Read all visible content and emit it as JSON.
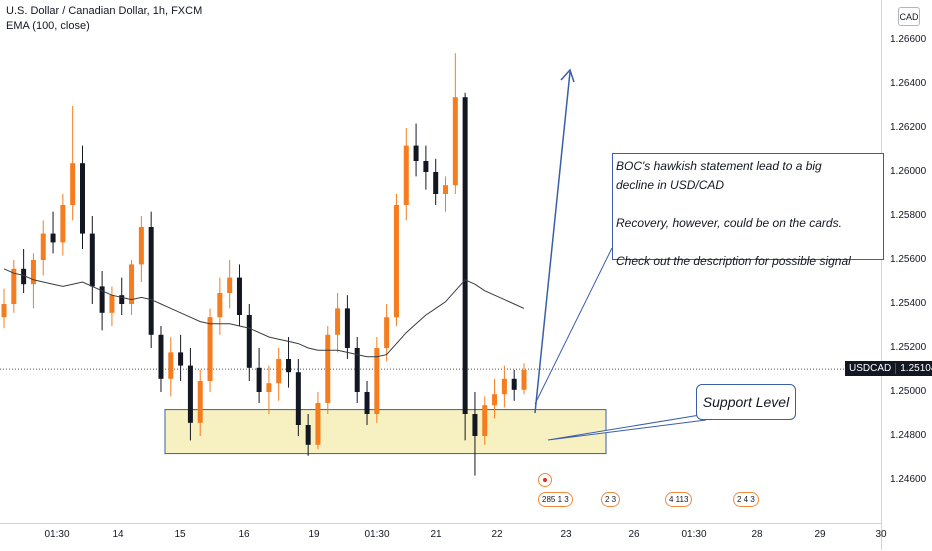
{
  "header": {
    "symbol_line": "U.S. Dollar / Canadian Dollar, 1h, FXCM",
    "indicator_line": "EMA (100, close)"
  },
  "currency_button": "CAD",
  "price_tag": {
    "symbol": "USDCAD",
    "value": "1.25104"
  },
  "annotations": {
    "note_lines": [
      "BOC's hawkish statement lead to a big",
      "decline in USD/CAD",
      "",
      "Recovery, however, could be on the cards.",
      "",
      "Check out the description for possible signal"
    ],
    "support_label": "Support Level"
  },
  "events": [
    {
      "label": "285 1 3"
    },
    {
      "label": "2  3"
    },
    {
      "label": "4 113"
    },
    {
      "label": "2  4 3"
    }
  ],
  "colors": {
    "up_candle": "#f57c1f",
    "down_candle": "#131722",
    "ema": "#3b3b3b",
    "support_zone": "#f7f0c0",
    "support_border": "#3a5ea8",
    "arrow": "#3a5ea8"
  },
  "chart_data": {
    "type": "candlestick",
    "ylim": [
      1.244,
      1.267
    ],
    "y_ticks": [
      "1.26600",
      "1.26400",
      "1.26200",
      "1.26000",
      "1.25800",
      "1.25600",
      "1.25400",
      "1.25200",
      "1.25000",
      "1.24800",
      "1.24600"
    ],
    "x_ticks": [
      "01:30",
      "14",
      "15",
      "16",
      "19",
      "01:30",
      "21",
      "22",
      "23",
      "26",
      "01:30",
      "28",
      "29",
      "30"
    ],
    "last_price": 1.25104,
    "support_zone": [
      1.2472,
      1.2492
    ],
    "ohlc_series": [
      [
        1.2534,
        1.2547,
        1.2529,
        1.254
      ],
      [
        1.254,
        1.256,
        1.2536,
        1.2556
      ],
      [
        1.2556,
        1.2565,
        1.2545,
        1.2549
      ],
      [
        1.2549,
        1.2563,
        1.2538,
        1.256
      ],
      [
        1.256,
        1.2578,
        1.2553,
        1.2572
      ],
      [
        1.2572,
        1.2582,
        1.2563,
        1.2568
      ],
      [
        1.2568,
        1.259,
        1.2562,
        1.2585
      ],
      [
        1.2585,
        1.263,
        1.2578,
        1.2604
      ],
      [
        1.2604,
        1.2612,
        1.2565,
        1.2572
      ],
      [
        1.2572,
        1.258,
        1.254,
        1.2548
      ],
      [
        1.2548,
        1.2555,
        1.2528,
        1.2536
      ],
      [
        1.2536,
        1.2548,
        1.253,
        1.2544
      ],
      [
        1.2544,
        1.2552,
        1.2535,
        1.254
      ],
      [
        1.254,
        1.256,
        1.2535,
        1.2558
      ],
      [
        1.2558,
        1.258,
        1.255,
        1.2575
      ],
      [
        1.2575,
        1.2582,
        1.252,
        1.2526
      ],
      [
        1.2526,
        1.253,
        1.25,
        1.2506
      ],
      [
        1.2506,
        1.2525,
        1.2498,
        1.2518
      ],
      [
        1.2518,
        1.2526,
        1.2505,
        1.2512
      ],
      [
        1.2512,
        1.252,
        1.2478,
        1.2486
      ],
      [
        1.2486,
        1.251,
        1.248,
        1.2505
      ],
      [
        1.2505,
        1.2538,
        1.25,
        1.2534
      ],
      [
        1.2534,
        1.2552,
        1.2526,
        1.2545
      ],
      [
        1.2545,
        1.256,
        1.2538,
        1.2552
      ],
      [
        1.2552,
        1.2558,
        1.253,
        1.2535
      ],
      [
        1.2535,
        1.254,
        1.2505,
        1.2511
      ],
      [
        1.2511,
        1.252,
        1.2495,
        1.25
      ],
      [
        1.25,
        1.2512,
        1.249,
        1.2504
      ],
      [
        1.2504,
        1.252,
        1.2496,
        1.2515
      ],
      [
        1.2515,
        1.2525,
        1.2502,
        1.2509
      ],
      [
        1.2509,
        1.2515,
        1.248,
        1.2485
      ],
      [
        1.2485,
        1.249,
        1.2471,
        1.2476
      ],
      [
        1.2476,
        1.25,
        1.2474,
        1.2495
      ],
      [
        1.2495,
        1.253,
        1.249,
        1.2526
      ],
      [
        1.2526,
        1.2545,
        1.2518,
        1.2538
      ],
      [
        1.2538,
        1.2544,
        1.2515,
        1.252
      ],
      [
        1.252,
        1.2525,
        1.2495,
        1.25
      ],
      [
        1.25,
        1.2505,
        1.2485,
        1.249
      ],
      [
        1.249,
        1.2525,
        1.2486,
        1.252
      ],
      [
        1.252,
        1.254,
        1.2514,
        1.2534
      ],
      [
        1.2534,
        1.259,
        1.253,
        1.2585
      ],
      [
        1.2585,
        1.262,
        1.2578,
        1.2612
      ],
      [
        1.2612,
        1.2622,
        1.2598,
        1.2605
      ],
      [
        1.2605,
        1.2612,
        1.2592,
        1.26
      ],
      [
        1.26,
        1.2606,
        1.2585,
        1.259
      ],
      [
        1.259,
        1.2598,
        1.2582,
        1.2594
      ],
      [
        1.2594,
        1.2654,
        1.259,
        1.2634
      ],
      [
        1.2634,
        1.2636,
        1.2478,
        1.249
      ],
      [
        1.249,
        1.25,
        1.2462,
        1.248
      ],
      [
        1.248,
        1.2498,
        1.2476,
        1.2494
      ],
      [
        1.2494,
        1.2506,
        1.2488,
        1.2499
      ],
      [
        1.2499,
        1.2512,
        1.2493,
        1.2506
      ],
      [
        1.2506,
        1.251,
        1.2496,
        1.2501
      ],
      [
        1.2501,
        1.2513,
        1.2499,
        1.251
      ]
    ],
    "ema_100": [
      1.2556,
      1.2554,
      1.2553,
      1.2551,
      1.255,
      1.2549,
      1.2548,
      1.2549,
      1.255,
      1.2548,
      1.2546,
      1.2544,
      1.2543,
      1.2542,
      1.2543,
      1.2542,
      1.254,
      1.2538,
      1.2536,
      1.2534,
      1.2532,
      1.2531,
      1.2531,
      1.2531,
      1.253,
      1.2529,
      1.2527,
      1.2525,
      1.2524,
      1.2523,
      1.2522,
      1.252,
      1.2519,
      1.2519,
      1.2519,
      1.2518,
      1.2517,
      1.2516,
      1.2516,
      1.2517,
      1.2522,
      1.2527,
      1.2531,
      1.2535,
      1.2538,
      1.2541,
      1.2546,
      1.2551,
      1.2549,
      1.2546,
      1.2544,
      1.2542,
      1.254,
      1.2538
    ]
  }
}
